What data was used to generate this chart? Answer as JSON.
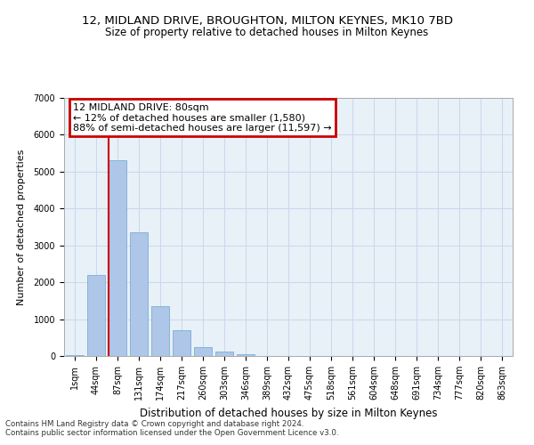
{
  "title_line1": "12, MIDLAND DRIVE, BROUGHTON, MILTON KEYNES, MK10 7BD",
  "title_line2": "Size of property relative to detached houses in Milton Keynes",
  "xlabel": "Distribution of detached houses by size in Milton Keynes",
  "ylabel": "Number of detached properties",
  "footnote1": "Contains HM Land Registry data © Crown copyright and database right 2024.",
  "footnote2": "Contains public sector information licensed under the Open Government Licence v3.0.",
  "bin_labels": [
    "1sqm",
    "44sqm",
    "87sqm",
    "131sqm",
    "174sqm",
    "217sqm",
    "260sqm",
    "303sqm",
    "346sqm",
    "389sqm",
    "432sqm",
    "475sqm",
    "518sqm",
    "561sqm",
    "604sqm",
    "648sqm",
    "691sqm",
    "734sqm",
    "777sqm",
    "820sqm",
    "863sqm"
  ],
  "bar_values": [
    30,
    2200,
    5300,
    3350,
    1350,
    700,
    250,
    130,
    55,
    10,
    0,
    0,
    0,
    0,
    0,
    0,
    0,
    0,
    0,
    0,
    0
  ],
  "bar_color": "#aec6e8",
  "bar_edge_color": "#7bafd4",
  "grid_color": "#c8d8ec",
  "background_color": "#e8f0f8",
  "vline_color": "#cc0000",
  "annotation_text_line1": "12 MIDLAND DRIVE: 80sqm",
  "annotation_text_line2": "← 12% of detached houses are smaller (1,580)",
  "annotation_text_line3": "88% of semi-detached houses are larger (11,597) →",
  "annotation_box_color": "#cc0000",
  "ylim": [
    0,
    7000
  ],
  "yticks": [
    0,
    1000,
    2000,
    3000,
    4000,
    5000,
    6000,
    7000
  ],
  "title1_fontsize": 9.5,
  "title2_fontsize": 8.5,
  "annot_fontsize": 8.0,
  "tick_fontsize": 7.0,
  "ylabel_fontsize": 8.0,
  "xlabel_fontsize": 8.5
}
